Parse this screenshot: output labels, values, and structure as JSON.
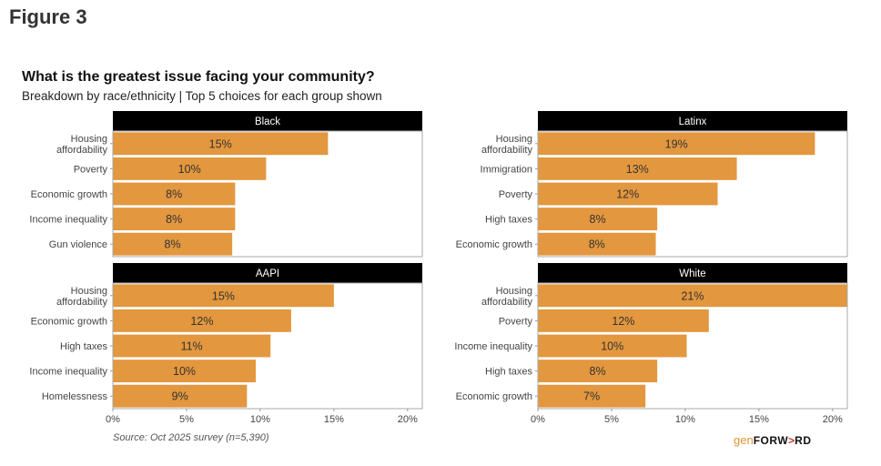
{
  "figure_label": "Figure 3",
  "title": "What is the greatest issue facing your community?",
  "subtitle": "Breakdown by race/ethnicity | Top 5 choices for each group shown",
  "source": "Source: Oct 2025 survey (n=5,390)",
  "logo": {
    "gen": "gen",
    "forw": "FORW",
    "arrow": ">",
    "rd": "RD"
  },
  "colors": {
    "bar": "#e3973e",
    "strip": "#000000",
    "strip_text": "#ffffff",
    "panel_border": "#aaaaaa"
  },
  "chart_data": {
    "type": "bar",
    "orientation": "horizontal",
    "title": "What is the greatest issue facing your community?",
    "subtitle": "Breakdown by race/ethnicity | Top 5 choices for each group shown",
    "xlabel": "",
    "ylabel": "",
    "xlim": [
      0,
      21
    ],
    "x_ticks": [
      0,
      5,
      10,
      15,
      20
    ],
    "x_tick_labels": [
      "0%",
      "5%",
      "10%",
      "15%",
      "20%"
    ],
    "grid": false,
    "legend": "none",
    "panels": [
      {
        "name": "Black",
        "categories": [
          "Housing\naffordability",
          "Poverty",
          "Economic growth",
          "Income inequality",
          "Gun violence"
        ],
        "values": [
          14.6,
          10.4,
          8.3,
          8.3,
          8.1
        ],
        "labels": [
          "15%",
          "10%",
          "8%",
          "8%",
          "8%"
        ]
      },
      {
        "name": "Latinx",
        "categories": [
          "Housing\naffordability",
          "Immigration",
          "Poverty",
          "High taxes",
          "Economic growth"
        ],
        "values": [
          18.8,
          13.5,
          12.2,
          8.1,
          8.0
        ],
        "labels": [
          "19%",
          "13%",
          "12%",
          "8%",
          "8%"
        ]
      },
      {
        "name": "AAPI",
        "categories": [
          "Housing\naffordability",
          "Economic growth",
          "High taxes",
          "Income inequality",
          "Homelessness"
        ],
        "values": [
          15.0,
          12.1,
          10.7,
          9.7,
          9.1
        ],
        "labels": [
          "15%",
          "12%",
          "11%",
          "10%",
          "9%"
        ]
      },
      {
        "name": "White",
        "categories": [
          "Housing\naffordability",
          "Poverty",
          "Income inequality",
          "High taxes",
          "Economic growth"
        ],
        "values": [
          21.0,
          11.6,
          10.1,
          8.1,
          7.3
        ],
        "labels": [
          "21%",
          "12%",
          "10%",
          "8%",
          "7%"
        ]
      }
    ]
  }
}
